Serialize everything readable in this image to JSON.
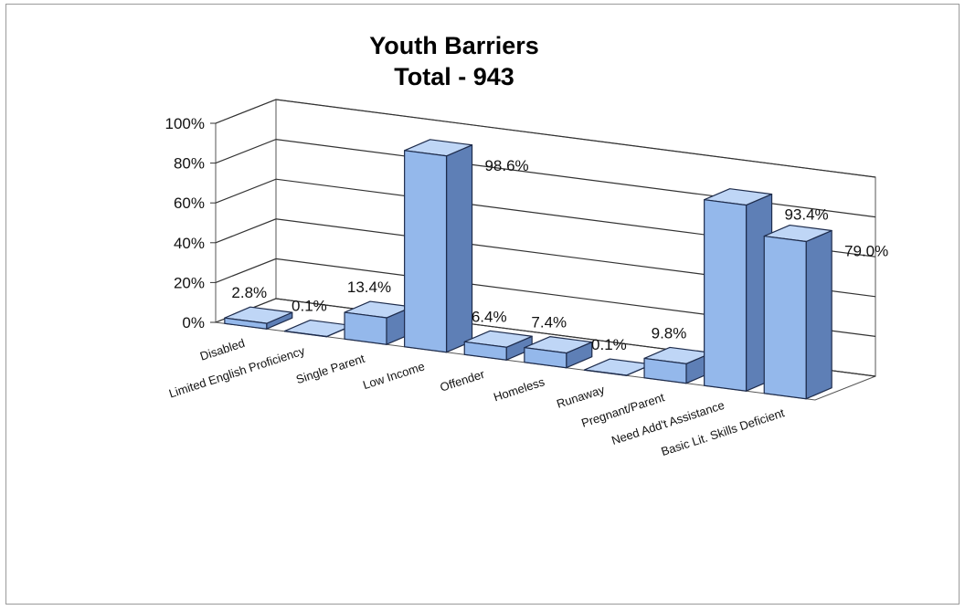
{
  "chart_data": {
    "type": "bar",
    "title": "Youth Barriers",
    "subtitle": "Total - 943",
    "categories": [
      "Disabled",
      "Limited English Proficiency",
      "Single Parent",
      "Low Income",
      "Offender",
      "Homeless",
      "Runaway",
      "Pregnant/Parent",
      "Need Add't Assistance",
      "Basic Lit. Skills Deficient"
    ],
    "values": [
      2.8,
      0.1,
      13.4,
      98.6,
      6.4,
      7.4,
      0.1,
      9.8,
      93.4,
      79.0
    ],
    "data_labels": [
      "2.8%",
      "0.1%",
      "13.4%",
      "98.6%",
      "6.4%",
      "7.4%",
      "0.1%",
      "9.8%",
      "93.4%",
      "79.0%"
    ],
    "yticks": [
      "0%",
      "20%",
      "40%",
      "60%",
      "80%",
      "100%"
    ],
    "ylim": [
      0,
      100
    ],
    "xlabel": "",
    "ylabel": "",
    "grid": true,
    "legend": "none",
    "style": "3d-column",
    "colors": {
      "bar_front": "#94B8EB",
      "bar_side": "#5E7FB6",
      "bar_top": "#BFD6F6",
      "edge": "#1E2C4C",
      "gridline": "#333333"
    }
  }
}
